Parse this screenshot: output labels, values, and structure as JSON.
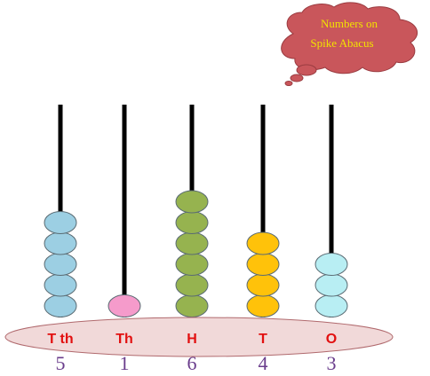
{
  "thought_bubble": {
    "line1": "Numbers on",
    "line2": "Spike Abacus",
    "fill": "#c9565b",
    "text_color": "#f2e300"
  },
  "base": {
    "fill": "#f1d9d9",
    "stroke": "#b0696d"
  },
  "label_color": "#e21010",
  "digit_color": "#6a3d8c",
  "spikes": [
    {
      "place": "T th",
      "digit": "5",
      "beads": 5,
      "bead_color": "#9ccfe3"
    },
    {
      "place": "Th",
      "digit": "1",
      "beads": 1,
      "bead_color": "#f59bcb"
    },
    {
      "place": "H",
      "digit": "6",
      "beads": 6,
      "bead_color": "#96b34f"
    },
    {
      "place": "T",
      "digit": "4",
      "beads": 4,
      "bead_color": "#ffc20a"
    },
    {
      "place": "O",
      "digit": "3",
      "beads": 3,
      "bead_color": "#b8eef3"
    }
  ]
}
